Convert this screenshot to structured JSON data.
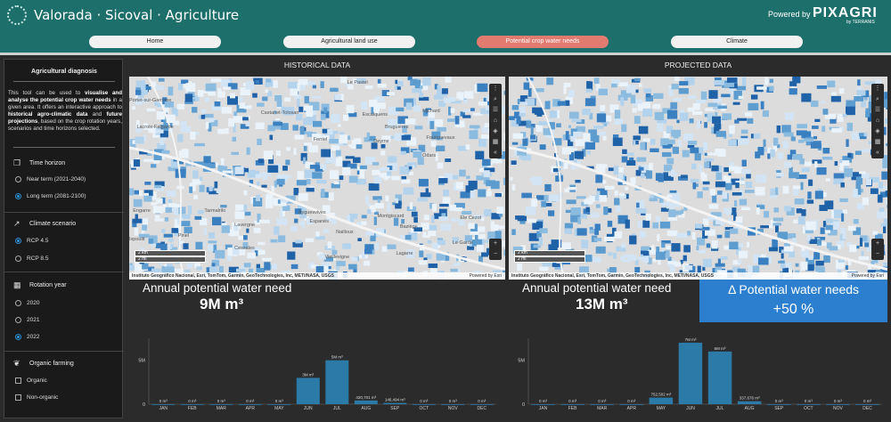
{
  "header": {
    "title": "Valorada · Sicoval · Agriculture",
    "powered_by": "Powered by",
    "brand": "PIXAGRI",
    "brand_sub": "by TERRANIS"
  },
  "tabs": [
    {
      "label": "Home",
      "active": false
    },
    {
      "label": "Agricultural land use",
      "active": false
    },
    {
      "label": "Potential crop water needs",
      "active": true
    },
    {
      "label": "Climate",
      "active": false
    }
  ],
  "sidebar": {
    "title": "Agricultural diagnosis",
    "desc_1": "This tool can be used to ",
    "desc_b1": "visualise and analyse the potential crop water needs",
    "desc_2": " in a given area. It offers an interactive approach to ",
    "desc_b2": "historical agro-climatic data",
    "desc_3": " and ",
    "desc_b3": "future projections",
    "desc_4": ", based on the crop rotation years, scenarios and time horizons selected.",
    "groups": [
      {
        "label": "Time horizon",
        "icon": "copy-icon",
        "options": [
          {
            "label": "Near term (2021-2040)",
            "selected": false
          },
          {
            "label": "Long term (2081-2100)",
            "selected": true
          }
        ]
      },
      {
        "label": "Climate scenario",
        "icon": "trend-icon",
        "options": [
          {
            "label": "RCP 4.5",
            "selected": true
          },
          {
            "label": "RCP 8.5",
            "selected": false
          }
        ]
      },
      {
        "label": "Rotation year",
        "icon": "calendar-icon",
        "options": [
          {
            "label": "2020",
            "selected": false
          },
          {
            "label": "2021",
            "selected": false
          },
          {
            "label": "2022",
            "selected": true
          }
        ]
      },
      {
        "label": "Organic farming",
        "icon": "leaf-icon",
        "options": [
          {
            "label": "Organic",
            "selected": false
          },
          {
            "label": "Non-organic",
            "selected": false
          }
        ]
      }
    ]
  },
  "historical": {
    "panel_title": "HISTORICAL DATA",
    "kpi_label": "Annual potential water need",
    "kpi_value": "9M m³",
    "scale_km": "2 km",
    "scale_mi": "2 mi",
    "attribution": "Instituto Geográfico Nacional, Esri, TomTom, Garmin, GeoTechnologies, Inc, METI/NASA, USGS",
    "powered_esri": "Powered by Esri",
    "places": [
      "Le Pastel",
      "Portet-sur-Garonne",
      "Castanet-Tolosan",
      "Escalquens",
      "Michard",
      "Bruguières",
      "Fourquevaux",
      "Lacroix-Falgarde",
      "Ferriel",
      "Deyme",
      "Odars",
      "Engarre",
      "Tarmalrilo",
      "Ayguesvives",
      "Montgiscard",
      "Lavergne",
      "Espanès",
      "Baziège",
      "Ixpoulit",
      "Pinel",
      "Nailloux",
      "Le Garde",
      "Ele Cezot",
      "Cessales",
      "Lagarre",
      "Vieillevigne"
    ]
  },
  "projected": {
    "panel_title": "PROJECTED DATA",
    "kpi_label": "Annual potential water need",
    "kpi_value": "13M m³",
    "scale_km": "2 km",
    "scale_mi": "2 mi",
    "attribution": "Instituto Geográfico Nacional, Esri, TomTom, Garmin, GeoTechnologies, Inc, METI/NASA, USGS",
    "powered_esri": "Powered by Esri"
  },
  "delta": {
    "label": "Δ Potential water needs",
    "value": "+50 %"
  },
  "colors": {
    "header": "#1d6f6c",
    "active_tab": "#e27b6f",
    "bar": "#2b7aa8",
    "delta": "#2c7fcf"
  },
  "chart_data": [
    {
      "type": "bar",
      "categories": [
        "JAN",
        "FEB",
        "MAR",
        "APR",
        "MAY",
        "JUN",
        "JUL",
        "AUG",
        "SEP",
        "OCT",
        "NOV",
        "DEC"
      ],
      "values": [
        0,
        0,
        0,
        0,
        0,
        3000000,
        5000000,
        420701,
        146494,
        0,
        0,
        0
      ],
      "data_labels": [
        "0 m³",
        "0 m³",
        "0 m³",
        "0 m³",
        "0 m³",
        "3M m³",
        "5M m³",
        "420,701 m³",
        "146,494 m³",
        "0 m³",
        "0 m³",
        "0 m³"
      ],
      "yticks": [
        "5M",
        "0"
      ],
      "ylim": [
        0,
        7500000
      ]
    },
    {
      "type": "bar",
      "categories": [
        "JAN",
        "FEB",
        "MAR",
        "APR",
        "MAY",
        "JUN",
        "JUL",
        "AUG",
        "SEP",
        "OCT",
        "NOV",
        "DEC"
      ],
      "values": [
        0,
        0,
        0,
        0,
        752502,
        7000000,
        6000000,
        337676,
        0,
        0,
        0,
        0
      ],
      "data_labels": [
        "0 m³",
        "0 m³",
        "0 m³",
        "0 m³",
        "752,502 m³",
        "7M m³",
        "6M m³",
        "337,676 m³",
        "0 m³",
        "0 m³",
        "0 m³",
        "0 m³"
      ],
      "yticks": [
        "5M",
        "0"
      ],
      "ylim": [
        0,
        7500000
      ]
    }
  ]
}
